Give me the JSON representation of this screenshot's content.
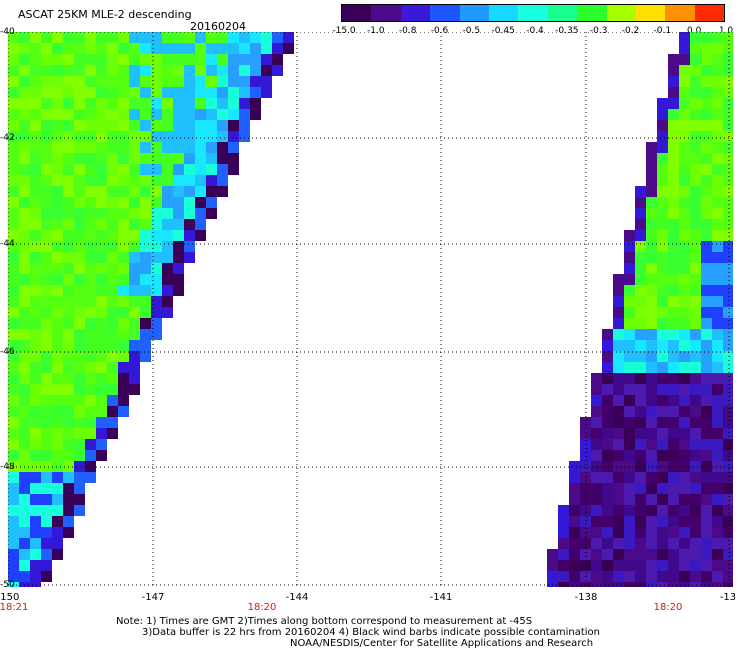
{
  "header": {
    "title": "ASCAT 25KM MLE-2 descending",
    "date": "20160204"
  },
  "colorbar": {
    "labels": [
      "-15.0",
      "-1.0",
      "-0.8",
      "-0.6",
      "-0.5",
      "-0.45",
      "-0.4",
      "-0.35",
      "-0.3",
      "-0.2",
      "-0.1",
      "0.0",
      "1.0"
    ],
    "colors": [
      "#3a0058",
      "#4a0a8a",
      "#3a1ad8",
      "#1f55ff",
      "#1f9aff",
      "#18d8ff",
      "#18ffe0",
      "#18ff90",
      "#2bff2b",
      "#a8ff00",
      "#ffe000",
      "#ff9000",
      "#ff2a00"
    ]
  },
  "axes": {
    "lat_labels": [
      "-40",
      "-42",
      "-44",
      "-46",
      "-48",
      "-50"
    ],
    "lon_labels": [
      "-150",
      "-147",
      "-144",
      "-141",
      "-138",
      "-13"
    ],
    "time_labels": [
      "18:21",
      "18:20",
      "18:20"
    ]
  },
  "notes": [
    "Note: 1) Times are GMT 2)Times along bottom correspond to measurement at -45S",
    "3)Data buffer is 22 hrs from 20160204 4) Black wind barbs indicate possible contamination",
    "NOAA/NESDIS/Center for Satellite Applications and Research"
  ]
}
